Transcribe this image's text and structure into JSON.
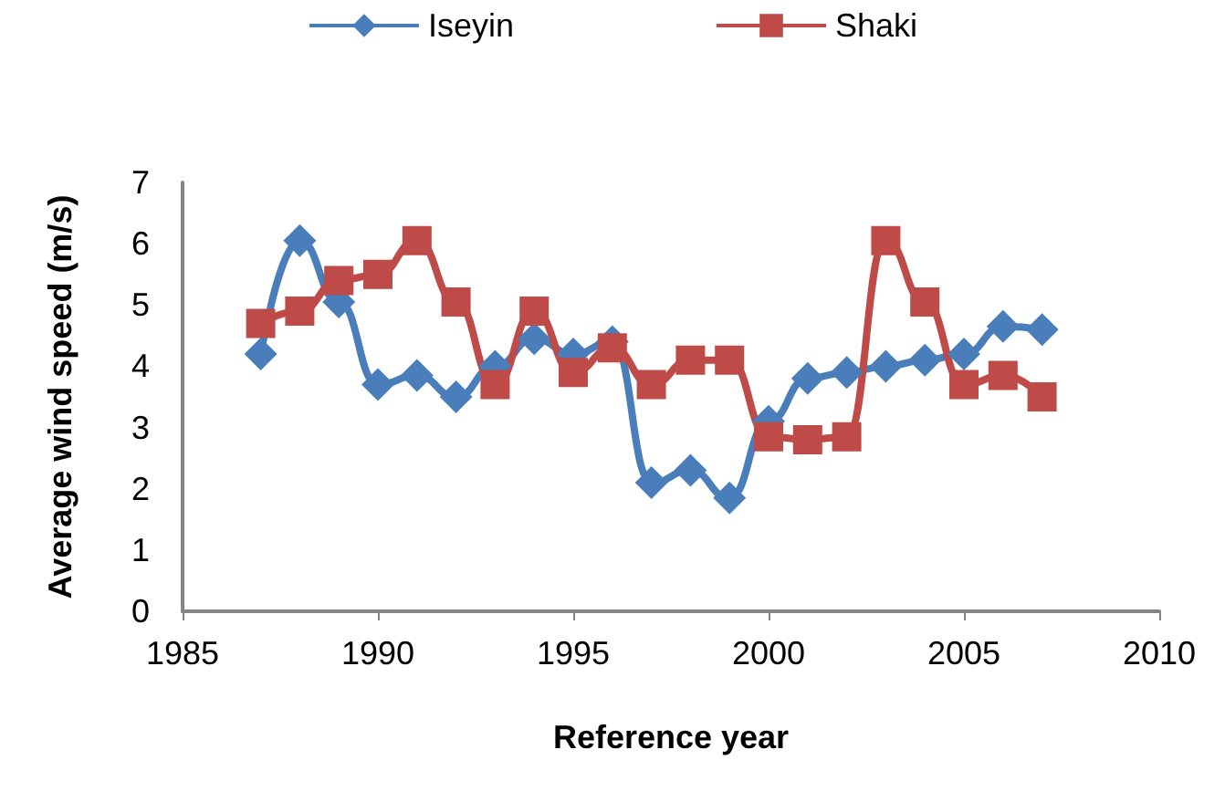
{
  "chart_data": {
    "type": "line",
    "xlabel": "Reference year",
    "ylabel": "Average wind speed (m/s)",
    "x": [
      1987,
      1988,
      1989,
      1990,
      1991,
      1992,
      1993,
      1994,
      1995,
      1996,
      1997,
      1998,
      1999,
      2000,
      2001,
      2002,
      2003,
      2004,
      2005,
      2006,
      2007
    ],
    "series": [
      {
        "name": "Iseyin",
        "color": "#4a7ebb",
        "marker": "diamond",
        "values": [
          4.2,
          6.05,
          5.05,
          3.7,
          3.85,
          3.5,
          4.0,
          4.45,
          4.2,
          4.4,
          2.1,
          2.3,
          1.85,
          3.1,
          3.8,
          3.9,
          4.0,
          4.1,
          4.2,
          4.65,
          4.6
        ]
      },
      {
        "name": "Shaki",
        "color": "#be4b48",
        "marker": "square",
        "values": [
          4.7,
          4.9,
          5.4,
          5.5,
          6.05,
          5.05,
          3.7,
          4.9,
          3.9,
          4.3,
          3.7,
          4.1,
          4.1,
          2.85,
          2.8,
          2.85,
          6.05,
          5.05,
          3.7,
          3.85,
          3.5
        ]
      }
    ],
    "xlim": [
      1985,
      2010
    ],
    "xticks": [
      1985,
      1990,
      1995,
      2000,
      2005,
      2010
    ],
    "ylim": [
      0,
      7
    ],
    "yticks": [
      0,
      1,
      2,
      3,
      4,
      5,
      6,
      7
    ],
    "grid": false,
    "legend": "top"
  }
}
